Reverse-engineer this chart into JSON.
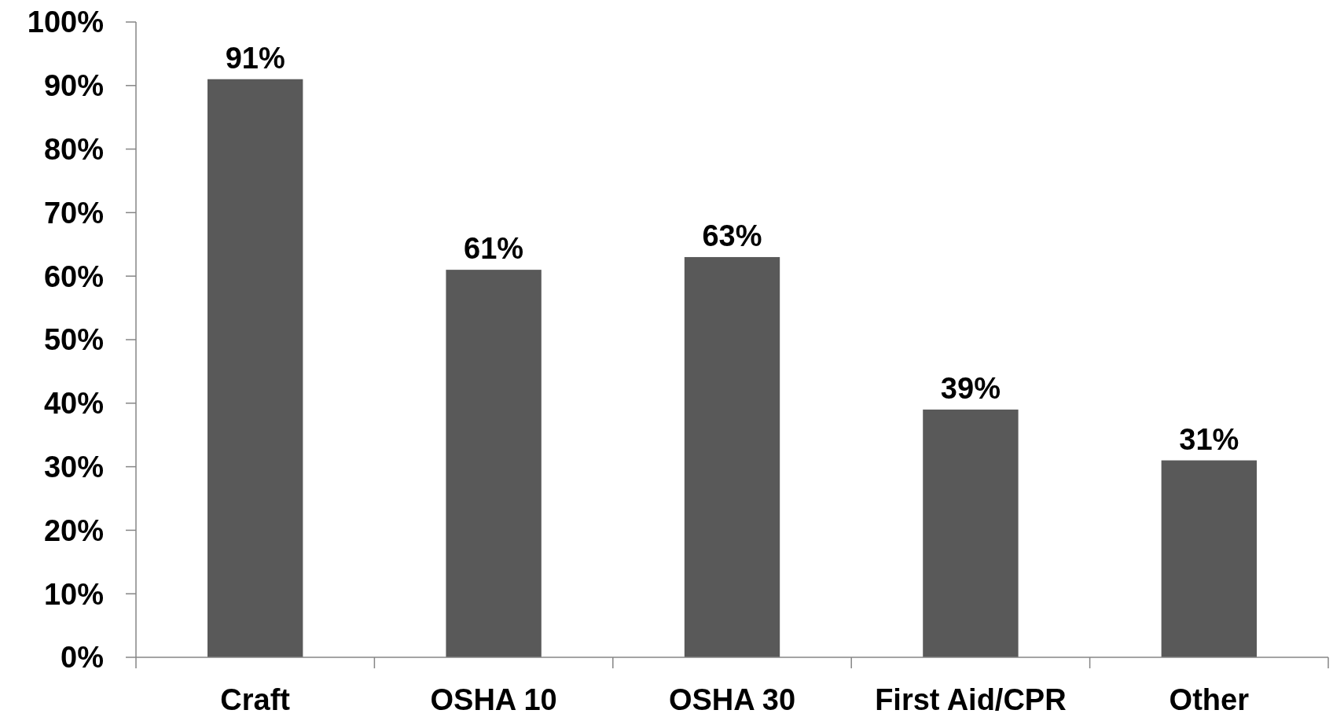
{
  "chart_data": {
    "type": "bar",
    "categories": [
      "Craft",
      "OSHA 10",
      "OSHA 30",
      "First Aid/CPR",
      "Other"
    ],
    "values": [
      91,
      61,
      63,
      39,
      31
    ],
    "color": "#595959",
    "value_labels": [
      "91%",
      "61%",
      "63%",
      "39%",
      "31%"
    ],
    "ylim": [
      0,
      100
    ],
    "yticks": [
      {
        "value": 0,
        "label": "0%"
      },
      {
        "value": 10,
        "label": "10%"
      },
      {
        "value": 20,
        "label": "20%"
      },
      {
        "value": 30,
        "label": "30%"
      },
      {
        "value": 40,
        "label": "40%"
      },
      {
        "value": 50,
        "label": "50%"
      },
      {
        "value": 60,
        "label": "60%"
      },
      {
        "value": 70,
        "label": "70%"
      },
      {
        "value": 80,
        "label": "80%"
      },
      {
        "value": 90,
        "label": "90%"
      },
      {
        "value": 100,
        "label": "100%"
      }
    ],
    "grid": false
  }
}
